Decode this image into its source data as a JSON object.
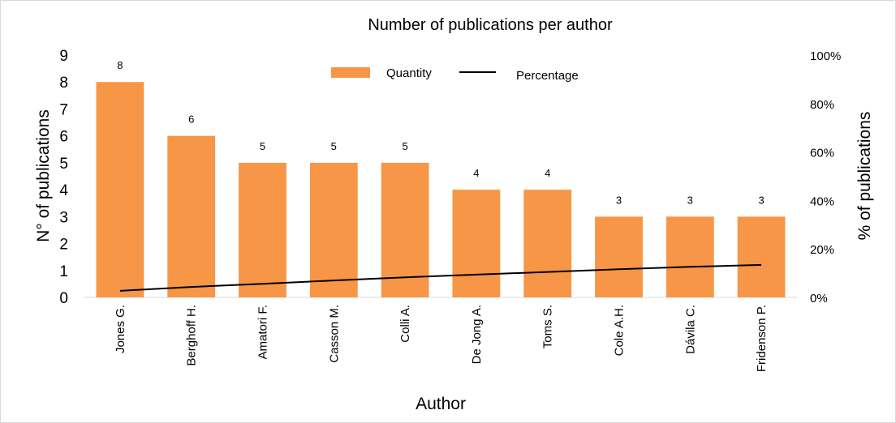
{
  "chart_data": {
    "type": "bar",
    "title": "Number of publications per author",
    "xlabel": "Author",
    "ylabel": "N° of publications",
    "y2label": "% of publications",
    "ylim": [
      0,
      9
    ],
    "y2lim": [
      0,
      100
    ],
    "yticks": [
      "0",
      "1",
      "2",
      "3",
      "4",
      "5",
      "6",
      "7",
      "8",
      "9"
    ],
    "y2ticks": [
      "0%",
      "20%",
      "40%",
      "60%",
      "80%",
      "100%"
    ],
    "categories": [
      "Jones G.",
      "Berghoff H.",
      "Amatori F.",
      "Casson M.",
      "Colli A.",
      "De Jong A.",
      "Toms S.",
      "Cole A.H.",
      "Dávila C.",
      "Fridenson P."
    ],
    "series": [
      {
        "name": "Quantity",
        "type": "bar",
        "axis": "left",
        "color": "#f79646",
        "values": [
          8,
          6,
          5,
          5,
          5,
          4,
          4,
          3,
          3,
          3
        ],
        "labels": [
          "8",
          "6",
          "5",
          "5",
          "5",
          "4",
          "4",
          "3",
          "3",
          "3"
        ]
      },
      {
        "name": "Percentage",
        "type": "line",
        "axis": "right",
        "color": "#000000",
        "values": [
          2.7,
          4.3,
          5.6,
          7.0,
          8.3,
          9.4,
          10.5,
          11.6,
          12.6,
          13.4
        ]
      }
    ],
    "grid": false,
    "legend": "top-center"
  }
}
